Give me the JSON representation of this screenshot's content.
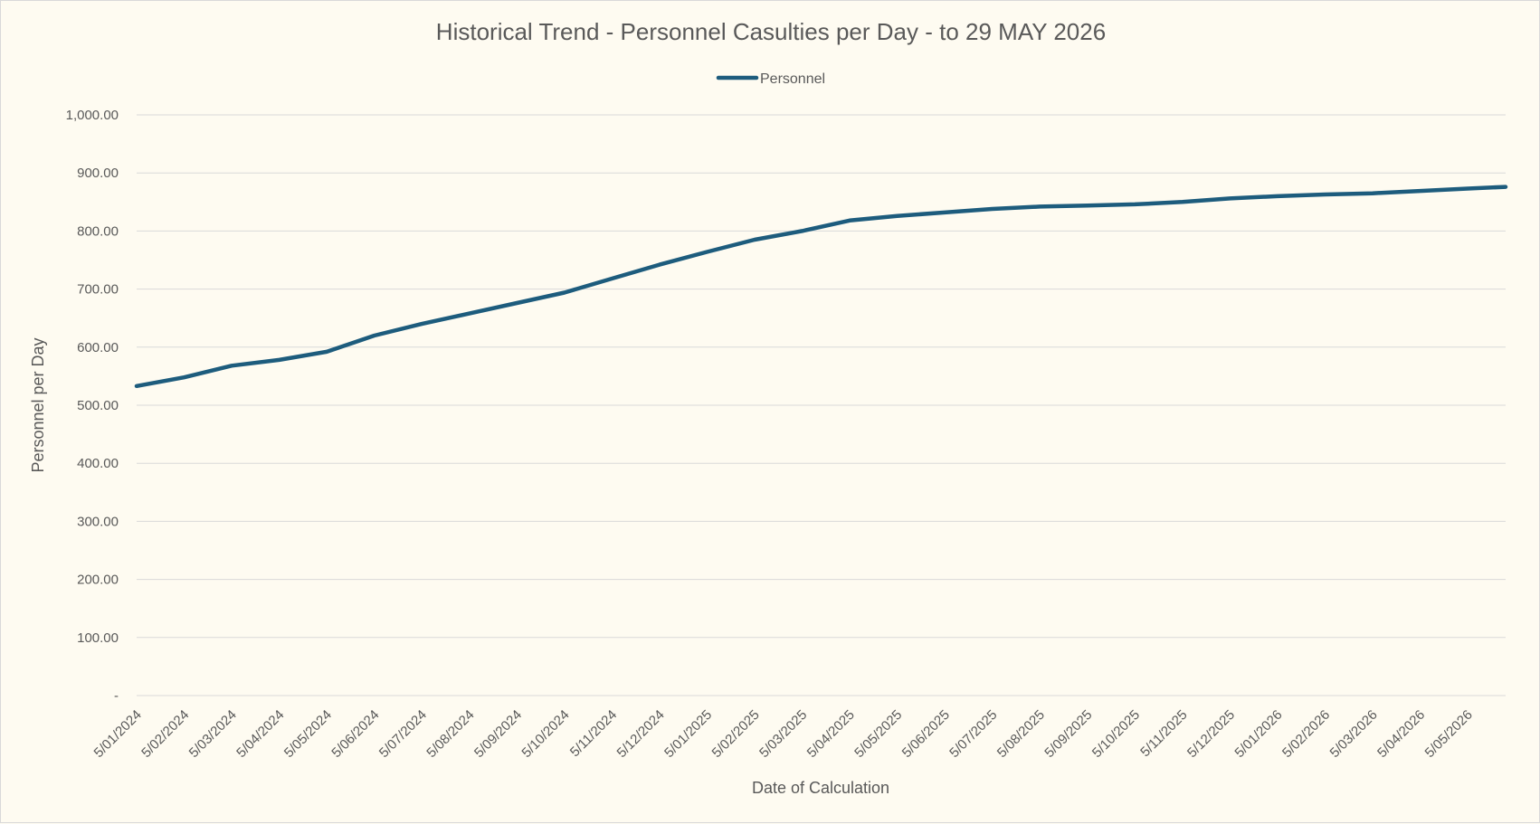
{
  "chart_data": {
    "type": "line",
    "title": "Historical Trend - Personnel Casulties per Day - to 29 MAY 2026",
    "xlabel": "Date of Calculation",
    "ylabel": "Personnel per Day",
    "legend": {
      "position": "top",
      "entries": [
        "Personnel"
      ]
    },
    "grid": true,
    "ylim": [
      0,
      1000
    ],
    "y_ticks": [
      {
        "value": 0,
        "label": "-"
      },
      {
        "value": 100,
        "label": "100.00"
      },
      {
        "value": 200,
        "label": "200.00"
      },
      {
        "value": 300,
        "label": "300.00"
      },
      {
        "value": 400,
        "label": "400.00"
      },
      {
        "value": 500,
        "label": "500.00"
      },
      {
        "value": 600,
        "label": "600.00"
      },
      {
        "value": 700,
        "label": "700.00"
      },
      {
        "value": 800,
        "label": "800.00"
      },
      {
        "value": 900,
        "label": "900.00"
      },
      {
        "value": 1000,
        "label": "1,000.00"
      }
    ],
    "x_ticks": [
      "5/01/2024",
      "5/02/2024",
      "5/03/2024",
      "5/04/2024",
      "5/05/2024",
      "5/06/2024",
      "5/07/2024",
      "5/08/2024",
      "5/09/2024",
      "5/10/2024",
      "5/11/2024",
      "5/12/2024",
      "5/01/2025",
      "5/02/2025",
      "5/03/2025",
      "5/04/2025",
      "5/05/2025",
      "5/06/2025",
      "5/07/2025",
      "5/08/2025",
      "5/09/2025",
      "5/10/2025",
      "5/11/2025",
      "5/12/2025",
      "5/01/2026",
      "5/02/2026",
      "5/03/2026",
      "5/04/2026",
      "5/05/2026"
    ],
    "x_end": "29/05/2026",
    "series": [
      {
        "name": "Personnel",
        "color": "#1d5c7d",
        "points": [
          [
            "5/01/2024",
            533
          ],
          [
            "5/02/2024",
            548
          ],
          [
            "5/03/2024",
            568
          ],
          [
            "5/04/2024",
            578
          ],
          [
            "5/05/2024",
            592
          ],
          [
            "5/06/2024",
            620
          ],
          [
            "5/07/2024",
            640
          ],
          [
            "5/08/2024",
            658
          ],
          [
            "5/09/2024",
            676
          ],
          [
            "5/10/2024",
            694
          ],
          [
            "5/11/2024",
            718
          ],
          [
            "5/12/2024",
            742
          ],
          [
            "5/01/2025",
            764
          ],
          [
            "5/02/2025",
            785
          ],
          [
            "5/03/2025",
            800
          ],
          [
            "5/04/2025",
            818
          ],
          [
            "5/05/2025",
            826
          ],
          [
            "5/06/2025",
            832
          ],
          [
            "5/07/2025",
            838
          ],
          [
            "5/08/2025",
            842
          ],
          [
            "5/09/2025",
            844
          ],
          [
            "5/10/2025",
            846
          ],
          [
            "5/11/2025",
            850
          ],
          [
            "5/12/2025",
            856
          ],
          [
            "5/01/2026",
            860
          ],
          [
            "5/02/2026",
            863
          ],
          [
            "5/03/2026",
            865
          ],
          [
            "5/04/2026",
            869
          ],
          [
            "5/05/2026",
            873
          ],
          [
            "29/05/2026",
            876
          ]
        ]
      }
    ]
  }
}
